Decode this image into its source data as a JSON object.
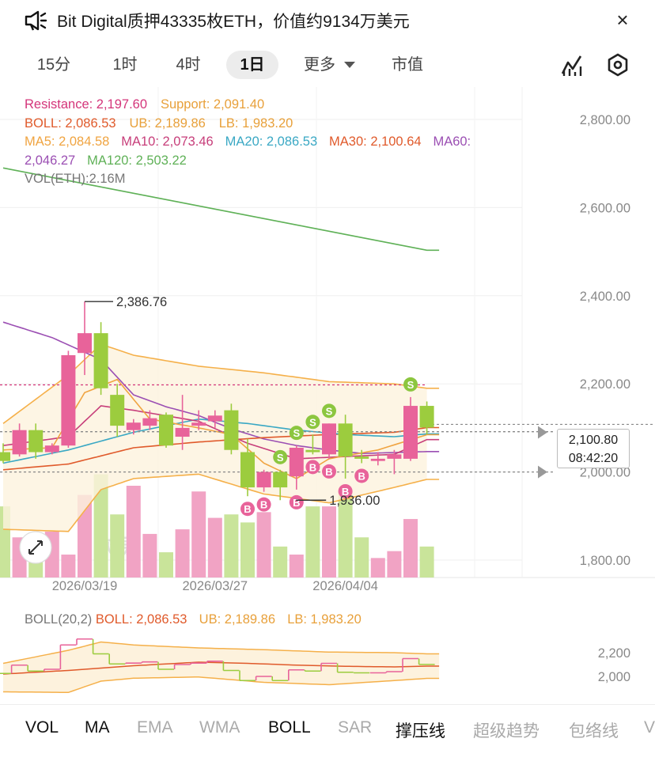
{
  "header": {
    "title": "Bit Digital质押43335枚ETH，价值约9134万美元",
    "speaker_icon": "speaker-icon",
    "close_label": "×"
  },
  "timeframe_tabs": [
    {
      "label": "15分",
      "active": false
    },
    {
      "label": "1时",
      "active": false
    },
    {
      "label": "4时",
      "active": false
    },
    {
      "label": "1日",
      "active": true
    },
    {
      "label": "更多",
      "active": false
    },
    {
      "label": "市值",
      "active": false
    }
  ],
  "indicators": {
    "resistance": "Resistance: 2,197.60",
    "support": "Support: 2,091.40",
    "boll": "BOLL: 2,086.53",
    "ub": "UB: 2,189.86",
    "lb": "LB: 1,983.20",
    "ma5": "MA5: 2,084.58",
    "ma10": "MA10: 2,073.46",
    "ma20": "MA20: 2,086.53",
    "ma30": "MA30: 2,100.64",
    "ma60_a": "MA60:",
    "ma60_b": "2,046.27",
    "ma120": "MA120: 2,503.22",
    "vol": "VOL(ETH):2.16M"
  },
  "annotations": {
    "high": "2,386.76",
    "low": "1,936.00",
    "current_price": "2,100.80",
    "countdown": "08:42:20",
    "watermark": "欧易"
  },
  "colors": {
    "up": "#e8639a",
    "down": "#9ccc3e",
    "ma120": "#5fb157",
    "ma60": "#9b4fb3",
    "ma30": "#e05a2b",
    "ma20": "#3aa8c4",
    "ma10": "#c73e7a",
    "ma5": "#f0a441",
    "boll_band": "#f5b04a",
    "resistance": "#d4357a",
    "support": "#e8a03a"
  },
  "chart_data": [
    {
      "type": "candlestick",
      "timeframe": "1日",
      "x_tick_labels": [
        "2026/03/19",
        "2026/03/27",
        "2026/04/04"
      ],
      "y_ticks": [
        1800,
        2000,
        2200,
        2400,
        2600,
        2800
      ],
      "y_tick_labels": [
        "1,800.00",
        "2,000.00",
        "2,200.00",
        "2,400.00",
        "2,600.00",
        "2,800.00"
      ],
      "ylim": [
        1760,
        2880
      ],
      "candles": [
        {
          "o": 2045,
          "h": 2065,
          "l": 2020,
          "c": 2025
        },
        {
          "o": 2040,
          "h": 2110,
          "l": 2035,
          "c": 2095
        },
        {
          "o": 2095,
          "h": 2110,
          "l": 2030,
          "c": 2045
        },
        {
          "o": 2045,
          "h": 2065,
          "l": 2040,
          "c": 2060
        },
        {
          "o": 2060,
          "h": 2275,
          "l": 2055,
          "c": 2265
        },
        {
          "o": 2270,
          "h": 2386.76,
          "l": 2220,
          "c": 2315
        },
        {
          "o": 2315,
          "h": 2340,
          "l": 2175,
          "c": 2190
        },
        {
          "o": 2175,
          "h": 2200,
          "l": 2080,
          "c": 2105
        },
        {
          "o": 2095,
          "h": 2120,
          "l": 2085,
          "c": 2112
        },
        {
          "o": 2105,
          "h": 2140,
          "l": 2095,
          "c": 2122
        },
        {
          "o": 2130,
          "h": 2135,
          "l": 2055,
          "c": 2060
        },
        {
          "o": 2080,
          "h": 2175,
          "l": 2050,
          "c": 2100
        },
        {
          "o": 2105,
          "h": 2140,
          "l": 2095,
          "c": 2112
        },
        {
          "o": 2115,
          "h": 2140,
          "l": 2100,
          "c": 2128
        },
        {
          "o": 2140,
          "h": 2155,
          "l": 2040,
          "c": 2050
        },
        {
          "o": 2045,
          "h": 2075,
          "l": 1945,
          "c": 1965
        },
        {
          "o": 1965,
          "h": 2005,
          "l": 1955,
          "c": 2000
        },
        {
          "o": 2000,
          "h": 2005,
          "l": 1936,
          "c": 1965
        },
        {
          "o": 1990,
          "h": 2060,
          "l": 1960,
          "c": 2055
        },
        {
          "o": 2050,
          "h": 2085,
          "l": 2040,
          "c": 2045
        },
        {
          "o": 2040,
          "h": 2110,
          "l": 2030,
          "c": 2110
        },
        {
          "o": 2110,
          "h": 2130,
          "l": 1985,
          "c": 2035
        },
        {
          "o": 2035,
          "h": 2050,
          "l": 2020,
          "c": 2030
        },
        {
          "o": 2025,
          "h": 2045,
          "l": 2015,
          "c": 2030
        },
        {
          "o": 2030,
          "h": 2050,
          "l": 1995,
          "c": 2040
        },
        {
          "o": 2030,
          "h": 2170,
          "l": 2025,
          "c": 2150
        },
        {
          "o": 2150,
          "h": 2160,
          "l": 2085,
          "c": 2100.8
        }
      ],
      "volume_relative": [
        0.62,
        0.35,
        0.2,
        0.4,
        0.2,
        0.72,
        0.9,
        0.55,
        0.8,
        0.38,
        0.22,
        0.42,
        0.75,
        0.52,
        0.55,
        0.48,
        0.57,
        0.27,
        0.2,
        0.62,
        0.62,
        0.75,
        0.35,
        0.17,
        0.23,
        0.51,
        0.27
      ],
      "markers": [
        {
          "label": "S",
          "candle": 17
        },
        {
          "label": "S",
          "candle": 18
        },
        {
          "label": "S",
          "candle": 19
        },
        {
          "label": "S",
          "candle": 20
        },
        {
          "label": "S",
          "candle": 25
        },
        {
          "label": "B",
          "candle": 15
        },
        {
          "label": "B",
          "candle": 16
        },
        {
          "label": "B",
          "candle": 18
        },
        {
          "label": "B",
          "candle": 19
        },
        {
          "label": "B",
          "candle": 20
        },
        {
          "label": "B",
          "candle": 21
        },
        {
          "label": "B",
          "candle": 22
        }
      ],
      "resistance": 2197.6,
      "support": 2091.4,
      "current_price": 2100.8,
      "ma120": [
        [
          0,
          2690
        ],
        [
          26,
          2503.22
        ]
      ],
      "ma60": [
        [
          0,
          2340
        ],
        [
          3,
          2305
        ],
        [
          6,
          2255
        ],
        [
          8,
          2175
        ],
        [
          10,
          2148
        ],
        [
          12,
          2128
        ],
        [
          14,
          2098
        ],
        [
          16,
          2075
        ],
        [
          18,
          2060
        ],
        [
          20,
          2050
        ],
        [
          22,
          2042
        ],
        [
          26,
          2046.27
        ]
      ],
      "ma30": [
        [
          0,
          2005
        ],
        [
          4,
          2018
        ],
        [
          8,
          2055
        ],
        [
          12,
          2068
        ],
        [
          16,
          2078
        ],
        [
          20,
          2085
        ],
        [
          24,
          2090
        ],
        [
          26,
          2100.64
        ]
      ],
      "ma20": [
        [
          0,
          2020
        ],
        [
          4,
          2050
        ],
        [
          8,
          2090
        ],
        [
          12,
          2120
        ],
        [
          15,
          2110
        ],
        [
          18,
          2095
        ],
        [
          21,
          2085
        ],
        [
          24,
          2080
        ],
        [
          26,
          2086.53
        ]
      ],
      "ma10": [
        [
          0,
          2060
        ],
        [
          4,
          2080
        ],
        [
          6,
          2150
        ],
        [
          8,
          2140
        ],
        [
          12,
          2115
        ],
        [
          15,
          2065
        ],
        [
          18,
          2030
        ],
        [
          21,
          2035
        ],
        [
          24,
          2040
        ],
        [
          26,
          2073.46
        ]
      ],
      "ma5": [
        [
          0,
          2050
        ],
        [
          3,
          2055
        ],
        [
          5,
          2180
        ],
        [
          7,
          2210
        ],
        [
          9,
          2120
        ],
        [
          12,
          2100
        ],
        [
          14,
          2085
        ],
        [
          16,
          2020
        ],
        [
          18,
          1985
        ],
        [
          20,
          2030
        ],
        [
          23,
          2050
        ],
        [
          26,
          2084.58
        ]
      ],
      "boll_upper": [
        [
          0,
          2110
        ],
        [
          4,
          2220
        ],
        [
          6,
          2290
        ],
        [
          8,
          2265
        ],
        [
          12,
          2240
        ],
        [
          16,
          2225
        ],
        [
          20,
          2205
        ],
        [
          24,
          2200
        ],
        [
          26,
          2189.86
        ]
      ],
      "boll_lower": [
        [
          0,
          1870
        ],
        [
          4,
          1865
        ],
        [
          6,
          1960
        ],
        [
          8,
          1985
        ],
        [
          12,
          1995
        ],
        [
          16,
          1950
        ],
        [
          20,
          1930
        ],
        [
          24,
          1965
        ],
        [
          26,
          1983.2
        ]
      ]
    },
    {
      "type": "line",
      "indicator": "BOLL(20,2)",
      "boll": "BOLL: 2,086.53",
      "ub": "UB: 2,189.86",
      "lb": "LB: 1,983.20",
      "y_ticks": [
        2000,
        2200
      ],
      "y_tick_labels": [
        "2,000",
        "2,200"
      ]
    }
  ],
  "bottom_tabs": [
    {
      "label": "VOL",
      "on": true
    },
    {
      "label": "MA",
      "on": true
    },
    {
      "label": "EMA",
      "on": false
    },
    {
      "label": "WMA",
      "on": false
    },
    {
      "label": "BOLL",
      "on": true
    },
    {
      "label": "SAR",
      "on": false
    },
    {
      "label": "撑压线",
      "on": true
    },
    {
      "label": "超级趋势",
      "on": false
    },
    {
      "label": "包络线",
      "on": false
    },
    {
      "label": "V",
      "on": false
    }
  ]
}
